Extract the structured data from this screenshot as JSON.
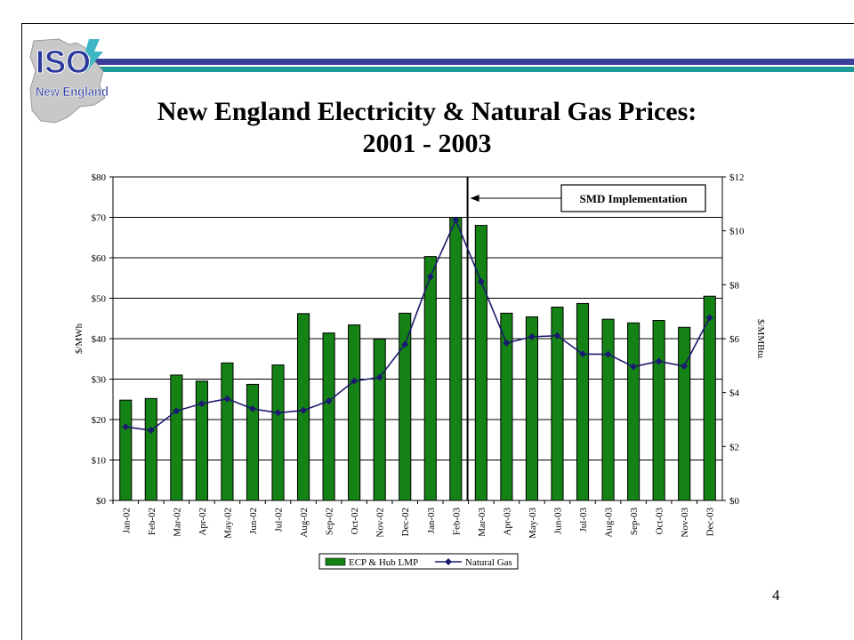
{
  "slide": {
    "title_line1": "New England Electricity & Natural Gas Prices:",
    "title_line2": "2001 - 2003",
    "page_number": "4",
    "stripe_colors": [
      "#3a3f9a",
      "#1e9a9a"
    ]
  },
  "logo": {
    "brand_top": "ISO",
    "brand_bottom": "New England",
    "colors": {
      "blue": "#2c3a9c",
      "map": "#c8c8c8",
      "bolt": "#3fb6c6"
    }
  },
  "chart_data": {
    "type": "bar",
    "categories": [
      "Jan-02",
      "Feb-02",
      "Mar-02",
      "Apr-02",
      "May-02",
      "Jun-02",
      "Jul-02",
      "Aug-02",
      "Sep-02",
      "Oct-02",
      "Nov-02",
      "Dec-02",
      "Jan-03",
      "Feb-03",
      "Mar-03",
      "Apr-03",
      "May-03",
      "Jun-03",
      "Jul-03",
      "Aug-03",
      "Sep-03",
      "Oct-03",
      "Nov-03",
      "Dec-03"
    ],
    "series": [
      {
        "name": "ECP & Hub LMP",
        "type": "bar",
        "axis": "left",
        "color": "#148214",
        "values": [
          24.8,
          25.2,
          31.0,
          29.5,
          34.0,
          28.7,
          33.5,
          46.2,
          41.4,
          43.4,
          39.9,
          46.3,
          60.3,
          70.0,
          68.0,
          46.3,
          45.4,
          47.8,
          48.7,
          44.8,
          43.9,
          44.5,
          42.8,
          50.5
        ]
      },
      {
        "name": "Natural Gas",
        "type": "line",
        "axis": "right",
        "color": "#1b1b6e",
        "values": [
          2.73,
          2.6,
          3.32,
          3.59,
          3.77,
          3.4,
          3.25,
          3.34,
          3.69,
          4.43,
          4.56,
          5.79,
          8.3,
          10.4,
          8.12,
          5.84,
          6.07,
          6.11,
          5.43,
          5.42,
          4.96,
          5.16,
          4.98,
          6.78
        ]
      }
    ],
    "ylabel": "$/MWh",
    "y2label": "$/MMBtu",
    "ylim": [
      0,
      80
    ],
    "y2lim": [
      0,
      12
    ],
    "yticks": [
      "$0",
      "$10",
      "$20",
      "$30",
      "$40",
      "$50",
      "$60",
      "$70",
      "$80"
    ],
    "y2ticks": [
      "$0",
      "$2",
      "$4",
      "$6",
      "$8",
      "$10",
      "$12"
    ],
    "grid": true,
    "legend_position": "bottom",
    "annotation": {
      "label": "SMD Implementation",
      "after_category": "Feb-03"
    }
  }
}
